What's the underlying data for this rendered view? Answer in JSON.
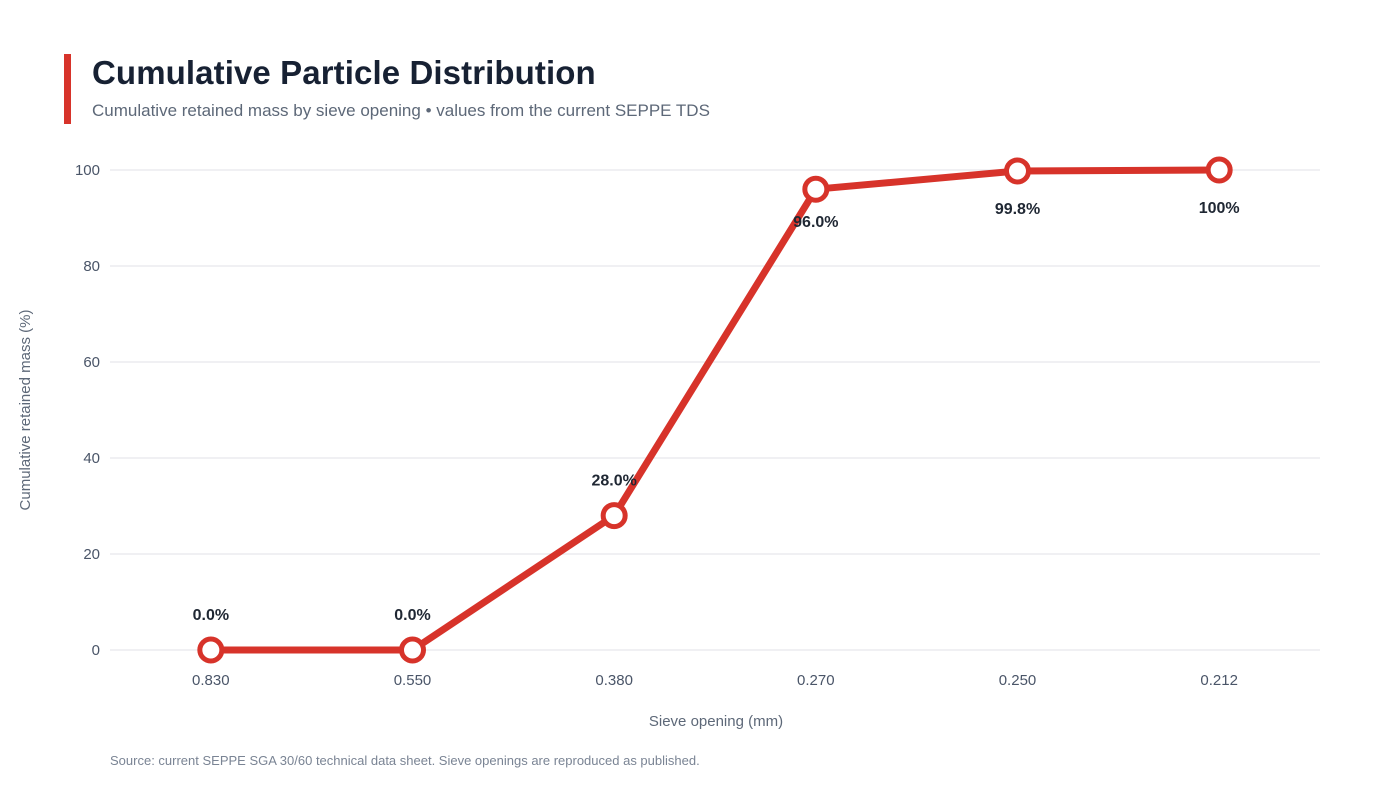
{
  "header": {
    "title": "Cumulative Particle Distribution",
    "subtitle": "Cumulative retained mass by sieve opening • values from the current SEPPE TDS"
  },
  "footer": {
    "source": "Source: current SEPPE SGA 30/60 technical data sheet. Sieve openings are reproduced as published."
  },
  "colors": {
    "accent": "#d7332a",
    "grid": "#e6e8ec",
    "marker_fill": "#ffffff"
  },
  "chart_data": {
    "type": "line",
    "title": "Cumulative Particle Distribution",
    "subtitle": "Cumulative retained mass by sieve opening • values from the current SEPPE TDS",
    "xlabel": "Sieve opening (mm)",
    "ylabel": "Cumulative retained mass (%)",
    "categories": [
      "0.830",
      "0.550",
      "0.380",
      "0.270",
      "0.250",
      "0.212"
    ],
    "values": [
      0.0,
      0.0,
      28.0,
      96.0,
      99.8,
      100
    ],
    "data_labels": [
      "0.0%",
      "0.0%",
      "28.0%",
      "96.0%",
      "99.8%",
      "100%"
    ],
    "ylim": [
      0,
      100
    ],
    "yticks": [
      0,
      20,
      40,
      60,
      80,
      100
    ],
    "grid": true,
    "legend": "none"
  }
}
